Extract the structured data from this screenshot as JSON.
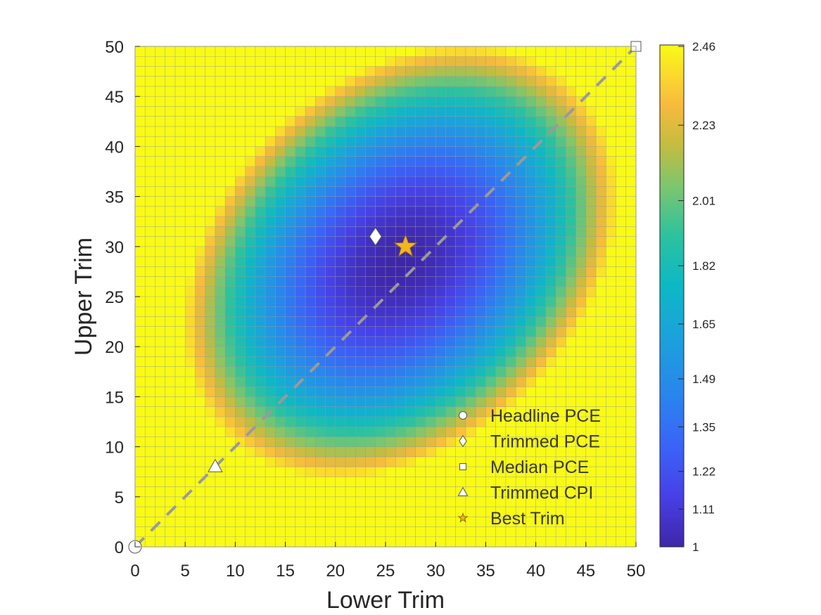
{
  "chart_data": {
    "type": "heatmap",
    "xlabel": "Lower Trim",
    "ylabel": "Upper Trim",
    "x_ticks": [
      0,
      5,
      10,
      15,
      20,
      25,
      30,
      35,
      40,
      45,
      50
    ],
    "y_ticks": [
      0,
      5,
      10,
      15,
      20,
      25,
      30,
      35,
      40,
      45,
      50
    ],
    "xlim": [
      0,
      50
    ],
    "ylim": [
      0,
      50
    ],
    "grid_resolution": 1,
    "colorbar": {
      "min": 1,
      "max": 2.46,
      "ticks": [
        1,
        1.11,
        1.22,
        1.35,
        1.49,
        1.65,
        1.82,
        2.01,
        2.23,
        2.46
      ],
      "colormap": "parula"
    },
    "surface": {
      "description_values": "Value is lowest (~1.0) near (Lower 24, Upper 29) and along the diagonal band; rises to saturated maximum (2.46) at the edges where either trim is near 0 or where trims are far apart.",
      "minimum_value": 1,
      "maximum_value": 2.46
    },
    "diagonal_line": {
      "from": [
        0,
        0
      ],
      "to": [
        50,
        50
      ],
      "style": "dashed",
      "color": "#9a9a9a"
    },
    "markers": [
      {
        "name": "Headline PCE",
        "x": 0,
        "y": 0,
        "shape": "circle",
        "color": "#ffffff"
      },
      {
        "name": "Trimmed PCE",
        "x": 24,
        "y": 31,
        "shape": "diamond",
        "color": "#ffffff"
      },
      {
        "name": "Median PCE",
        "x": 50,
        "y": 50,
        "shape": "square",
        "color": "#ffffff"
      },
      {
        "name": "Trimmed CPI",
        "x": 8,
        "y": 8,
        "shape": "triangle",
        "color": "#ffffff"
      },
      {
        "name": "Best Trim",
        "x": 27,
        "y": 30,
        "shape": "star",
        "color": "#f5b51f"
      }
    ],
    "legend": {
      "position": "lower-right",
      "entries": [
        "Headline PCE",
        "Trimmed PCE",
        "Median PCE",
        "Trimmed CPI",
        "Best Trim"
      ]
    }
  }
}
